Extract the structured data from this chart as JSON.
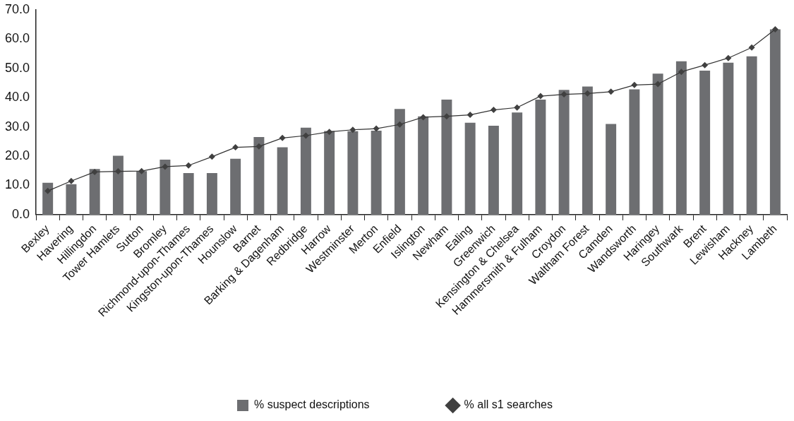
{
  "chart_data": {
    "type": "bar",
    "categories": [
      "Bexley",
      "Havering",
      "Hillingdon",
      "Tower Hamlets",
      "Sutton",
      "Bromley",
      "Richmond-upon-Thames",
      "Kingston-upon-Thames",
      "Hounslow",
      "Barnet",
      "Barking & Dagenham",
      "Redbridge",
      "Harrow",
      "Westminster",
      "Merton",
      "Enfield",
      "Islington",
      "Newham",
      "Ealing",
      "Greenwich",
      "Kensington & Chelsea",
      "Hammersmith & Fulham",
      "Croydon",
      "Waltham Forest",
      "Camden",
      "Wandsworth",
      "Haringey",
      "Southwark",
      "Brent",
      "Lewisham",
      "Hackney",
      "Lambeth"
    ],
    "series": [
      {
        "name": "% suspect descriptions",
        "color": "#6d6e71",
        "values": [
          10.9,
          10.4,
          15.6,
          20.1,
          14.9,
          18.8,
          14.2,
          14.2,
          19.1,
          26.5,
          23.0,
          29.7,
          28.6,
          28.5,
          28.7,
          36.1,
          33.6,
          39.3,
          31.4,
          30.4,
          34.9,
          39.3,
          42.6,
          43.8,
          31.0,
          42.8,
          48.2,
          52.4,
          49.2,
          51.9,
          54.1,
          63.3
        ]
      },
      {
        "name": "% all s1 searches",
        "type": "line",
        "color": "#333333",
        "marker": "diamond",
        "values": [
          8.1,
          11.5,
          14.6,
          14.8,
          14.9,
          16.4,
          16.8,
          19.8,
          23.0,
          23.3,
          26.2,
          27.0,
          28.3,
          29.0,
          29.4,
          30.8,
          33.3,
          33.6,
          34.1,
          35.8,
          36.6,
          40.5,
          41.1,
          41.4,
          42.0,
          44.3,
          44.6,
          48.8,
          51.1,
          53.5,
          57.1,
          63.3
        ]
      }
    ],
    "ylim": [
      0,
      70
    ],
    "yticks": [
      {
        "value": 0,
        "label": "0.0"
      },
      {
        "value": 10,
        "label": "10.0"
      },
      {
        "value": 20,
        "label": "20.0"
      },
      {
        "value": 30,
        "label": "30.0"
      },
      {
        "value": 40,
        "label": "40.0"
      },
      {
        "value": 50,
        "label": "50.0"
      },
      {
        "value": 60,
        "label": "60.0"
      },
      {
        "value": 70,
        "label": "70.0"
      }
    ],
    "legend": "bottom"
  }
}
